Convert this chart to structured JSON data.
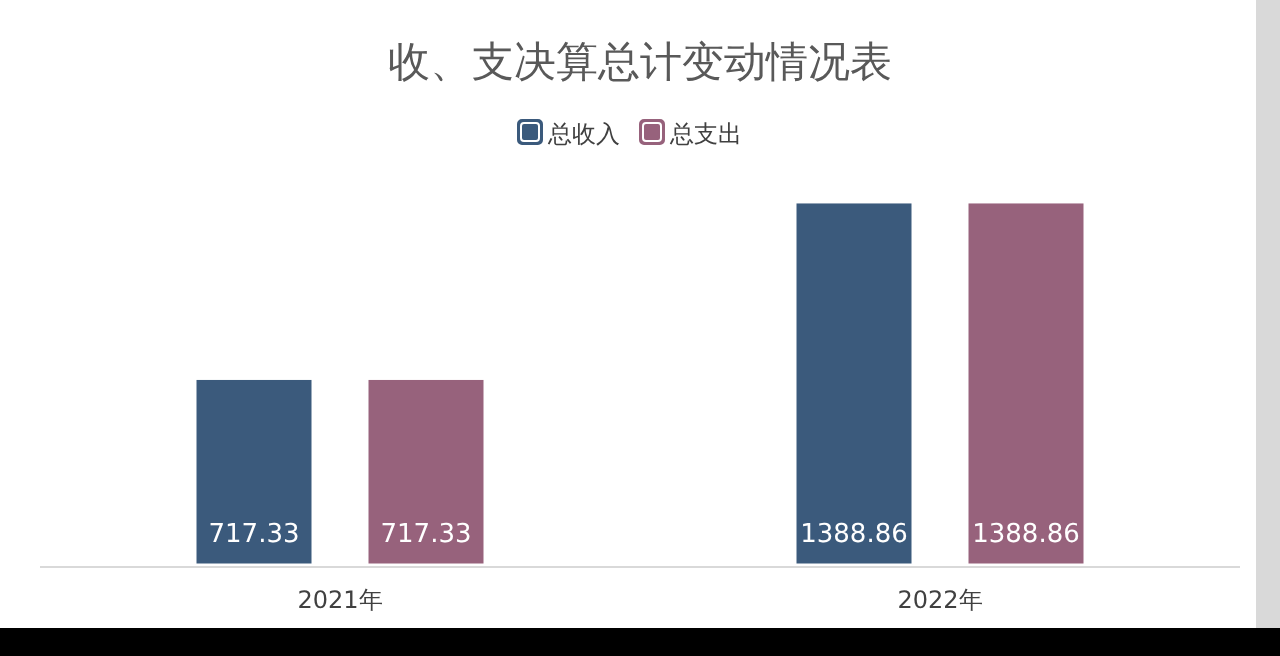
{
  "chart_data": {
    "type": "bar",
    "title": "收、支决算总计变动情况表",
    "categories": [
      "2021年",
      "2022年"
    ],
    "series": [
      {
        "name": "总收入",
        "color": "#3b5a7c",
        "values": [
          717.33,
          1388.86
        ]
      },
      {
        "name": "总支出",
        "color": "#97627c",
        "values": [
          717.33,
          1388.86
        ]
      }
    ],
    "data_labels": true,
    "legend": "top",
    "grid": false
  }
}
